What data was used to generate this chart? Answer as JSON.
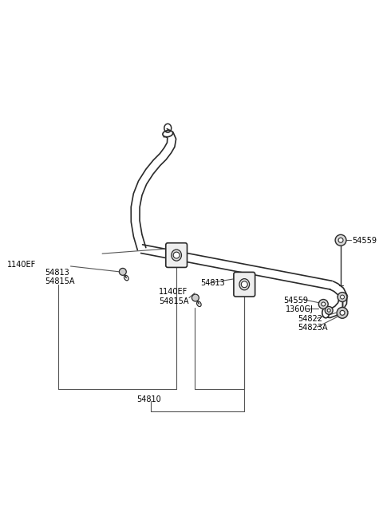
{
  "bg_color": "#ffffff",
  "line_color": "#2a2a2a",
  "text_color": "#000000",
  "figsize": [
    4.8,
    6.56
  ],
  "dpi": 100,
  "labels": {
    "bolt1": "1140EF",
    "bushing1": "54813",
    "bracket1": "54815A",
    "bolt2": "1140EF",
    "bushing2": "54813",
    "bracket2": "54815A",
    "bar": "54810",
    "nut1": "54559",
    "nut2": "54559",
    "code": "1360GJ",
    "washer": "54822",
    "bush2": "54823A"
  }
}
